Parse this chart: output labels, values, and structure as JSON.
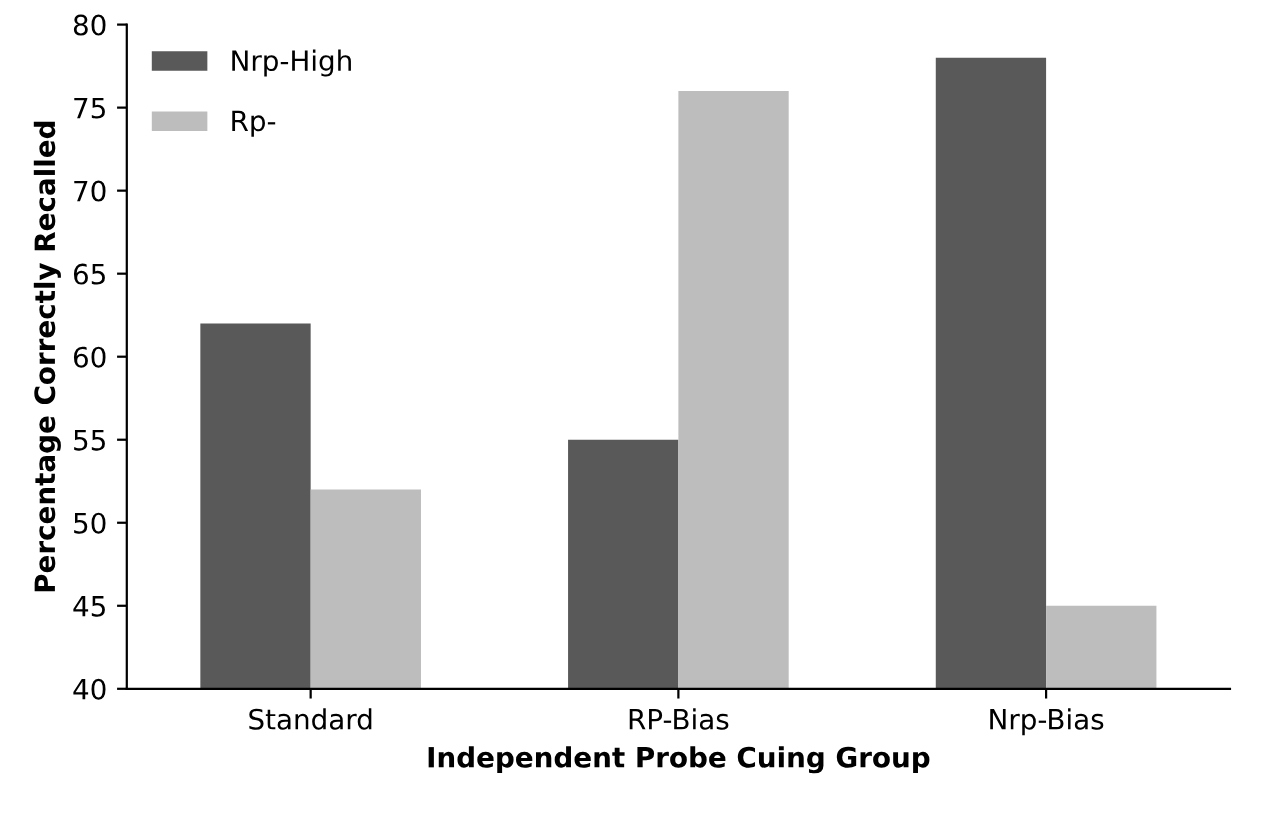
{
  "chart_data": {
    "type": "bar",
    "xlabel": "Independent Probe Cuing Group",
    "ylabel": "Percentage Correctly Recalled",
    "categories": [
      "Standard",
      "RP-Bias",
      "Nrp-Bias"
    ],
    "series": [
      {
        "name": "Nrp-High",
        "color": "#595959",
        "values": [
          62,
          55,
          78
        ]
      },
      {
        "name": "Rp-",
        "color": "#bdbdbd",
        "values": [
          52,
          76,
          45
        ]
      }
    ],
    "ylim": [
      40,
      80
    ],
    "yticks": [
      40,
      45,
      50,
      55,
      60,
      65,
      70,
      75,
      80
    ],
    "legend": "top left"
  }
}
